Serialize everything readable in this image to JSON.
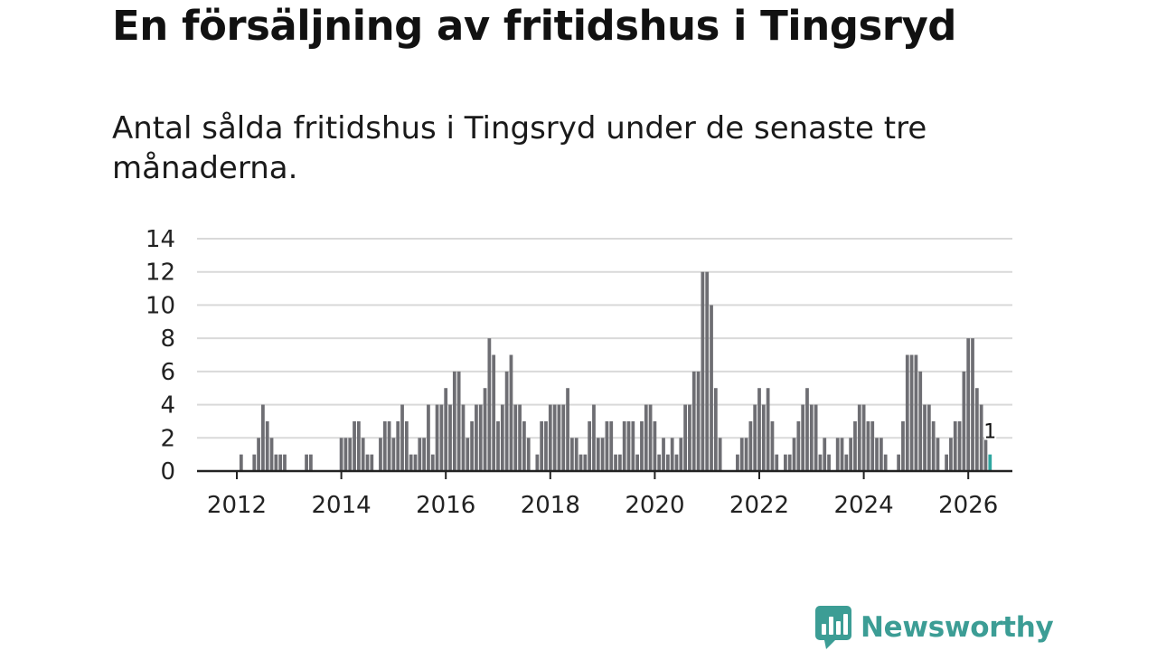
{
  "title": "En försäljning av fritidshus i Tingsryd",
  "subtitle": "Antal sålda fritidshus i Tingsryd under de senaste tre månaderna.",
  "brand": {
    "name": "Newsworthy",
    "color": "#3c9d95"
  },
  "colors": {
    "bar": "#6e6e73",
    "highlight": "#2fa6a0",
    "grid": "#d9d9d9",
    "axis": "#222222"
  },
  "chart_data": {
    "type": "bar",
    "title": "",
    "xlabel": "",
    "ylabel": "",
    "ylim": [
      0,
      14
    ],
    "yticks": [
      0,
      2,
      4,
      6,
      8,
      10,
      12,
      14
    ],
    "xticks": [
      2012,
      2014,
      2016,
      2018,
      2020,
      2022,
      2024,
      2026
    ],
    "x_start": "2011-10",
    "grid": true,
    "highlight_annotation": "1",
    "values": [
      0,
      0,
      0,
      0,
      1,
      0,
      0,
      1,
      2,
      4,
      3,
      2,
      1,
      1,
      1,
      0,
      0,
      0,
      0,
      1,
      1,
      0,
      0,
      0,
      0,
      0,
      0,
      2,
      2,
      2,
      3,
      3,
      2,
      1,
      1,
      0,
      2,
      3,
      3,
      2,
      3,
      4,
      3,
      1,
      1,
      2,
      2,
      4,
      1,
      4,
      4,
      5,
      4,
      6,
      6,
      4,
      2,
      3,
      4,
      4,
      5,
      8,
      7,
      3,
      4,
      6,
      7,
      4,
      4,
      3,
      2,
      0,
      1,
      3,
      3,
      4,
      4,
      4,
      4,
      5,
      2,
      2,
      1,
      1,
      3,
      4,
      2,
      2,
      3,
      3,
      1,
      1,
      3,
      3,
      3,
      1,
      3,
      4,
      4,
      3,
      1,
      2,
      1,
      2,
      1,
      2,
      4,
      4,
      6,
      6,
      12,
      12,
      10,
      5,
      2,
      0,
      0,
      0,
      1,
      2,
      2,
      3,
      4,
      5,
      4,
      5,
      3,
      1,
      0,
      1,
      1,
      2,
      3,
      4,
      5,
      4,
      4,
      1,
      2,
      1,
      0,
      2,
      2,
      1,
      2,
      3,
      4,
      4,
      3,
      3,
      2,
      2,
      1,
      0,
      0,
      1,
      3,
      7,
      7,
      7,
      6,
      4,
      4,
      3,
      2,
      0,
      1,
      2,
      3,
      3,
      6,
      8,
      8,
      5,
      4,
      2,
      1
    ]
  }
}
